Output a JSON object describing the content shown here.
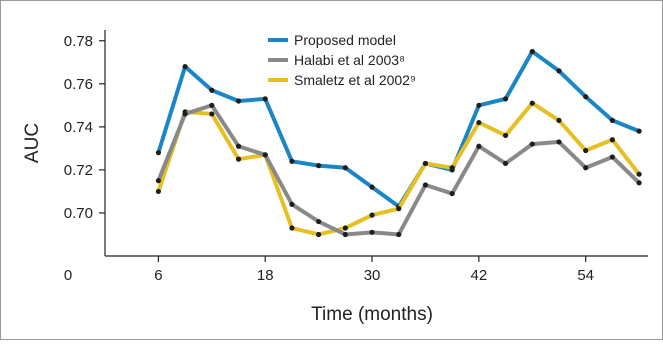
{
  "chart_data": {
    "type": "line",
    "title": "",
    "xlabel": "Time (months)",
    "ylabel": "AUC",
    "xlim": [
      0,
      61
    ],
    "ylim": [
      0.68,
      0.785
    ],
    "x_ticks": [
      0,
      6,
      18,
      30,
      42,
      54
    ],
    "x_tick_labels": [
      "0",
      "6",
      "18",
      "30",
      "42",
      "54"
    ],
    "y_ticks": [
      0.7,
      0.72,
      0.74,
      0.76,
      0.78
    ],
    "y_tick_labels": [
      "0.70",
      "0.72",
      "0.74",
      "0.76",
      "0.78"
    ],
    "grid": false,
    "legend_position": "top-center",
    "x": [
      6,
      9,
      12,
      15,
      18,
      21,
      24,
      27,
      30,
      33,
      36,
      39,
      42,
      45,
      48,
      51,
      54,
      57,
      60
    ],
    "series": [
      {
        "name": "Proposed model",
        "color": "#1a86c6",
        "values": [
          0.728,
          0.768,
          0.757,
          0.752,
          0.753,
          0.724,
          0.722,
          0.721,
          0.712,
          0.703,
          0.723,
          0.72,
          0.75,
          0.753,
          0.775,
          0.766,
          0.754,
          0.743,
          0.738
        ]
      },
      {
        "name": "Halabi et al 2003⁸",
        "color": "#898989",
        "values": [
          0.715,
          0.746,
          0.75,
          0.731,
          0.727,
          0.704,
          0.696,
          0.69,
          0.691,
          0.69,
          0.713,
          0.709,
          0.731,
          0.723,
          0.732,
          0.733,
          0.721,
          0.726,
          0.714
        ]
      },
      {
        "name": "Smaletz et al 2002⁹",
        "color": "#e6bf22",
        "values": [
          0.71,
          0.747,
          0.746,
          0.725,
          0.727,
          0.693,
          0.69,
          0.693,
          0.699,
          0.702,
          0.723,
          0.721,
          0.742,
          0.736,
          0.751,
          0.743,
          0.729,
          0.734,
          0.718
        ]
      }
    ]
  }
}
